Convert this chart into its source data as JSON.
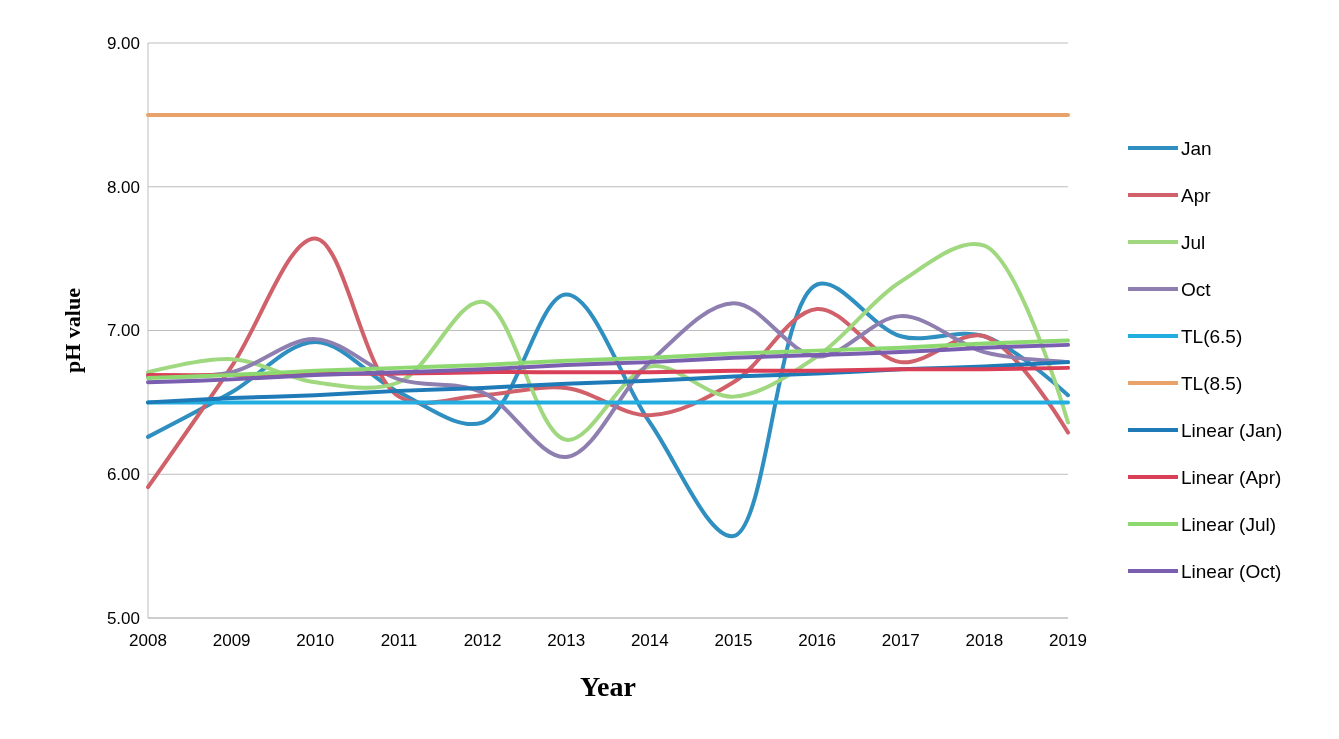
{
  "chart_data": {
    "type": "line",
    "xlabel": "Year",
    "ylabel": "pH value",
    "x": [
      2008,
      2009,
      2010,
      2011,
      2012,
      2013,
      2014,
      2015,
      2016,
      2017,
      2018,
      2019
    ],
    "xlim": [
      2008,
      2019
    ],
    "xticks": [
      2008,
      2009,
      2010,
      2011,
      2012,
      2013,
      2014,
      2015,
      2016,
      2017,
      2018,
      2019
    ],
    "ylim": [
      5,
      9
    ],
    "yticks": [
      {
        "value": 5,
        "label": "5.00"
      },
      {
        "value": 6,
        "label": "6.00"
      },
      {
        "value": 7,
        "label": "7.00"
      },
      {
        "value": 8,
        "label": "8.00"
      },
      {
        "value": 9,
        "label": "9.00"
      }
    ],
    "grid": "y",
    "legend": "right",
    "series": [
      {
        "name": "Jan",
        "color": "#2e8fc0",
        "values": [
          6.26,
          6.57,
          6.92,
          6.57,
          6.36,
          7.25,
          6.36,
          5.57,
          7.32,
          6.96,
          6.96,
          6.55
        ]
      },
      {
        "name": "Apr",
        "color": "#d0606a",
        "values": [
          5.91,
          6.75,
          7.64,
          6.54,
          6.55,
          6.6,
          6.41,
          6.64,
          7.15,
          6.78,
          6.96,
          6.29
        ]
      },
      {
        "name": "Jul",
        "color": "#9fd87f",
        "values": [
          6.71,
          6.8,
          6.64,
          6.64,
          7.2,
          6.24,
          6.75,
          6.54,
          6.82,
          7.34,
          7.59,
          6.36
        ]
      },
      {
        "name": "Oct",
        "color": "#8e7fb0",
        "values": [
          6.68,
          6.71,
          6.94,
          6.66,
          6.57,
          6.12,
          6.78,
          7.19,
          6.82,
          7.1,
          6.85,
          6.78
        ]
      },
      {
        "name": "TL(6.5)",
        "color": "#22aee0",
        "values": [
          6.5,
          6.5,
          6.5,
          6.5,
          6.5,
          6.5,
          6.5,
          6.5,
          6.5,
          6.5,
          6.5,
          6.5
        ]
      },
      {
        "name": "TL(8.5)",
        "color": "#e8a26a",
        "values": [
          8.5,
          8.5,
          8.5,
          8.5,
          8.5,
          8.5,
          8.5,
          8.5,
          8.5,
          8.5,
          8.5,
          8.5
        ]
      },
      {
        "name": "Linear (Jan)",
        "color": "#1f7bb8",
        "values": [
          6.5,
          6.53,
          6.55,
          6.58,
          6.6,
          6.63,
          6.65,
          6.68,
          6.7,
          6.73,
          6.75,
          6.78
        ]
      },
      {
        "name": "Linear (Apr)",
        "color": "#d94058",
        "values": [
          6.69,
          6.69,
          6.7,
          6.7,
          6.71,
          6.71,
          6.71,
          6.72,
          6.72,
          6.73,
          6.73,
          6.74
        ]
      },
      {
        "name": "Linear (Jul)",
        "color": "#8ed870",
        "values": [
          6.67,
          6.69,
          6.72,
          6.74,
          6.76,
          6.79,
          6.81,
          6.84,
          6.86,
          6.88,
          6.91,
          6.93
        ]
      },
      {
        "name": "Linear (Oct)",
        "color": "#7a5fb0",
        "values": [
          6.64,
          6.66,
          6.69,
          6.71,
          6.73,
          6.76,
          6.78,
          6.81,
          6.83,
          6.85,
          6.88,
          6.9
        ]
      }
    ]
  }
}
